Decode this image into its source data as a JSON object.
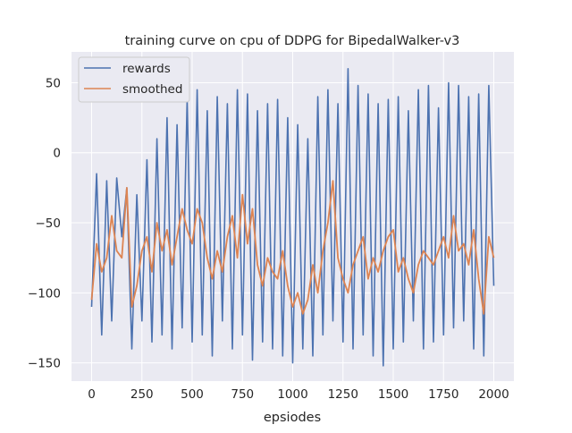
{
  "chart_data": {
    "type": "line",
    "title": "training curve on cpu of DDPG for BipedalWalker-v3",
    "xlabel": "epsiodes",
    "ylabel": "",
    "xlim": [
      -100,
      2100
    ],
    "ylim": [
      -163,
      72
    ],
    "xticks": [
      0,
      250,
      500,
      750,
      1000,
      1250,
      1500,
      1750,
      2000
    ],
    "yticks": [
      -150,
      -100,
      -50,
      0,
      50
    ],
    "grid": true,
    "legend_position": "top-left",
    "background": "#eaeaf2",
    "series": [
      {
        "name": "rewards",
        "color": "#4c72b0",
        "x": [
          0,
          25,
          50,
          75,
          100,
          125,
          150,
          175,
          200,
          225,
          250,
          275,
          300,
          325,
          350,
          375,
          400,
          425,
          450,
          475,
          500,
          525,
          550,
          575,
          600,
          625,
          650,
          675,
          700,
          725,
          750,
          775,
          800,
          825,
          850,
          875,
          900,
          925,
          950,
          975,
          1000,
          1025,
          1050,
          1075,
          1100,
          1125,
          1150,
          1175,
          1200,
          1225,
          1250,
          1275,
          1300,
          1325,
          1350,
          1375,
          1400,
          1425,
          1450,
          1475,
          1500,
          1525,
          1550,
          1575,
          1600,
          1625,
          1650,
          1675,
          1700,
          1725,
          1750,
          1775,
          1800,
          1825,
          1850,
          1875,
          1900,
          1925,
          1950,
          1975,
          2000
        ],
        "values": [
          -110,
          -15,
          -130,
          -20,
          -120,
          -18,
          -60,
          -25,
          -140,
          -30,
          -120,
          -5,
          -135,
          10,
          -130,
          25,
          -140,
          20,
          -125,
          38,
          -135,
          45,
          -130,
          30,
          -145,
          40,
          -120,
          35,
          -140,
          45,
          -130,
          42,
          -148,
          30,
          -135,
          35,
          -140,
          38,
          -145,
          25,
          -150,
          20,
          -140,
          10,
          -145,
          40,
          -130,
          45,
          -120,
          35,
          -135,
          60,
          -140,
          48,
          -130,
          42,
          -145,
          35,
          -152,
          38,
          -140,
          40,
          -135,
          30,
          -120,
          45,
          -140,
          48,
          -135,
          32,
          -130,
          50,
          -125,
          48,
          -120,
          40,
          -140,
          42,
          -145,
          48,
          -95
        ]
      },
      {
        "name": "smoothed",
        "color": "#dd8452",
        "x": [
          0,
          25,
          50,
          75,
          100,
          125,
          150,
          175,
          200,
          225,
          250,
          275,
          300,
          325,
          350,
          375,
          400,
          425,
          450,
          475,
          500,
          525,
          550,
          575,
          600,
          625,
          650,
          675,
          700,
          725,
          750,
          775,
          800,
          825,
          850,
          875,
          900,
          925,
          950,
          975,
          1000,
          1025,
          1050,
          1075,
          1100,
          1125,
          1150,
          1175,
          1200,
          1225,
          1250,
          1275,
          1300,
          1325,
          1350,
          1375,
          1400,
          1425,
          1450,
          1475,
          1500,
          1525,
          1550,
          1575,
          1600,
          1625,
          1650,
          1675,
          1700,
          1725,
          1750,
          1775,
          1800,
          1825,
          1850,
          1875,
          1900,
          1925,
          1950,
          1975,
          2000
        ],
        "values": [
          -105,
          -65,
          -85,
          -75,
          -45,
          -70,
          -75,
          -25,
          -110,
          -95,
          -70,
          -60,
          -85,
          -50,
          -70,
          -55,
          -80,
          -60,
          -40,
          -55,
          -65,
          -40,
          -50,
          -75,
          -90,
          -70,
          -85,
          -60,
          -45,
          -75,
          -30,
          -65,
          -40,
          -80,
          -95,
          -75,
          -85,
          -90,
          -70,
          -95,
          -110,
          -100,
          -115,
          -105,
          -80,
          -100,
          -70,
          -50,
          -20,
          -75,
          -90,
          -100,
          -80,
          -70,
          -60,
          -90,
          -75,
          -85,
          -70,
          -60,
          -55,
          -85,
          -75,
          -90,
          -100,
          -80,
          -70,
          -75,
          -80,
          -70,
          -60,
          -75,
          -45,
          -70,
          -65,
          -80,
          -55,
          -90,
          -115,
          -60,
          -75
        ]
      }
    ]
  }
}
